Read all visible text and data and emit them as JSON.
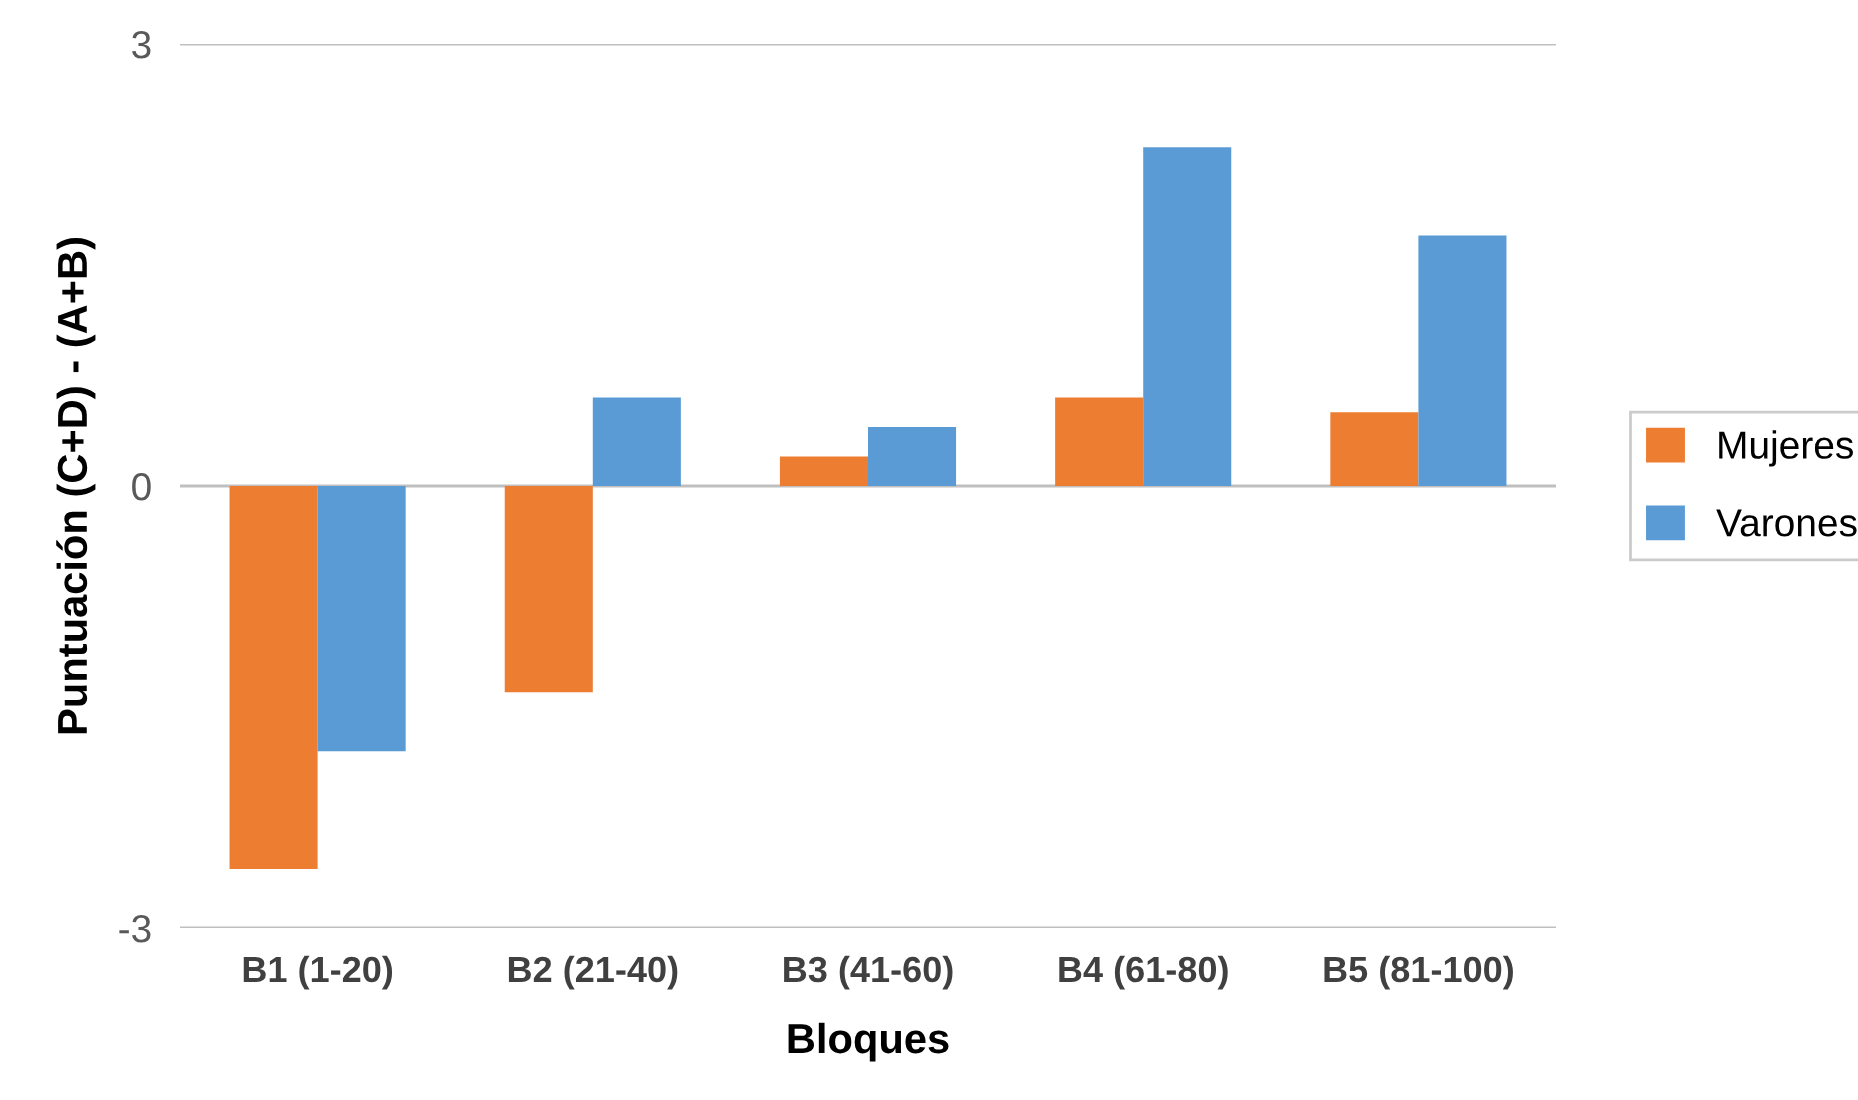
{
  "chart_data": {
    "type": "bar",
    "xlabel": "Bloques",
    "ylabel": "Puntuación (C+D) - (A+B)",
    "categories": [
      "B1 (1-20)",
      "B2 (21-40)",
      "B3 (41-60)",
      "B4 (61-80)",
      "B5 (81-100)"
    ],
    "series": [
      {
        "name": "Mujeres",
        "color": "#ed7d31",
        "values": [
          -2.6,
          -1.4,
          0.2,
          0.6,
          0.5
        ]
      },
      {
        "name": "Varones",
        "color": "#5b9bd5",
        "values": [
          -1.8,
          0.6,
          0.4,
          2.3,
          1.7
        ]
      }
    ],
    "ylim": [
      -3,
      3
    ],
    "yticks": [
      -3,
      0,
      3
    ],
    "grid": "y",
    "legend": "right"
  }
}
